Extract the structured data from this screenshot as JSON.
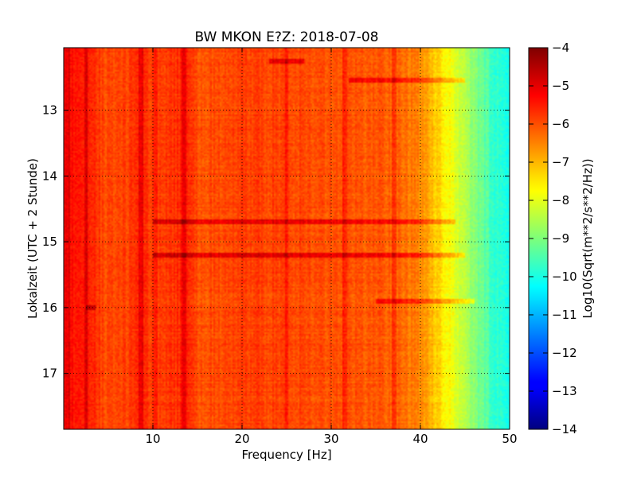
{
  "chart_data": {
    "type": "heatmap",
    "title": "BW MKON E?Z: 2018-07-08",
    "xlabel": "Frequency [Hz]",
    "ylabel": "Lokalzeit (UTC + 2 Stunde)",
    "colorbar_label": "Log10(Sqrt(m**2/s**2/Hz))",
    "xlim": [
      0,
      50
    ],
    "ylim": [
      12.05,
      17.85
    ],
    "y_inverted": true,
    "x_ticks": [
      10,
      20,
      30,
      40,
      50
    ],
    "y_ticks": [
      13,
      14,
      15,
      16,
      17
    ],
    "colorbar_range": [
      -14,
      -4
    ],
    "colorbar_ticks": [
      -4,
      -5,
      -6,
      -7,
      -8,
      -9,
      -10,
      -11,
      -12,
      -13,
      -14
    ],
    "colormap": "jet",
    "grid": true,
    "spectral_profile": {
      "frequency_hz": [
        0,
        1,
        2,
        2.5,
        3,
        5,
        8,
        8.7,
        10,
        13.5,
        15,
        20,
        25,
        30,
        33,
        36,
        38,
        40,
        41,
        42,
        43,
        44,
        45,
        46,
        47,
        48,
        49,
        50
      ],
      "log10_amplitude": [
        -5.5,
        -5.4,
        -5.6,
        -5.2,
        -5.6,
        -6.0,
        -5.8,
        -5.5,
        -5.9,
        -5.6,
        -6.0,
        -5.9,
        -5.9,
        -6.0,
        -6.1,
        -6.1,
        -6.3,
        -6.6,
        -6.9,
        -7.3,
        -7.7,
        -8.1,
        -8.5,
        -8.9,
        -9.3,
        -9.6,
        -9.9,
        -10.1
      ]
    },
    "vertical_features_hz": [
      0.5,
      2.5,
      8.7,
      10.2,
      13.5,
      25.0,
      31.5,
      37.0
    ],
    "horizontal_features": [
      {
        "time": 12.25,
        "from_hz": 23,
        "to_hz": 27
      },
      {
        "time": 12.55,
        "from_hz": 32,
        "to_hz": 45
      },
      {
        "time": 14.7,
        "from_hz": 10,
        "to_hz": 44
      },
      {
        "time": 15.2,
        "from_hz": 10,
        "to_hz": 45
      },
      {
        "time": 15.9,
        "from_hz": 35,
        "to_hz": 46
      },
      {
        "time": 16.0,
        "from_hz": 2.5,
        "to_hz": 3.5
      }
    ]
  }
}
